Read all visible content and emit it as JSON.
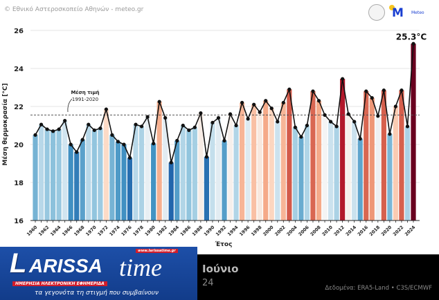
{
  "header": {
    "copyright": "© Εθνικό Αστεροσκοπείο Αθηνών - meteo.gr",
    "logo_text": "Meteo"
  },
  "footer": {
    "month": "Ιούνιο",
    "year_fragment": "24",
    "source": "Δεδομένα: ERA5-Land • C3S/ECMWF"
  },
  "banner": {
    "brand_l": "L",
    "brand_rest": "ARISSA",
    "brand_time": "time",
    "url": "www.larissatime.gr",
    "subtitle": "ΗΜΕΡΗΣΙΑ ΗΛΕΚΤΡΟΝΙΚΗ ΕΦΗΜΕΡΙΔΑ",
    "tagline": "τα γεγονότα τη στιγμή που συμβαίνουν"
  },
  "chart_data": {
    "type": "bar",
    "title": "",
    "xlabel": "Έτος",
    "ylabel": "Μέση θερμοκρασία [°C]",
    "ylim": [
      16,
      26
    ],
    "yticks": [
      16,
      18,
      20,
      22,
      24,
      26
    ],
    "mean_label": "Μέση τιμή",
    "mean_period": "1991-2020",
    "mean_value": 21.55,
    "last_label": "25.3°C",
    "x": [
      1960,
      1961,
      1962,
      1963,
      1964,
      1965,
      1966,
      1967,
      1968,
      1969,
      1970,
      1971,
      1972,
      1973,
      1974,
      1975,
      1976,
      1977,
      1978,
      1979,
      1980,
      1981,
      1982,
      1983,
      1984,
      1985,
      1986,
      1987,
      1988,
      1989,
      1990,
      1991,
      1992,
      1993,
      1994,
      1995,
      1996,
      1997,
      1998,
      1999,
      2000,
      2001,
      2002,
      2003,
      2004,
      2005,
      2006,
      2007,
      2008,
      2009,
      2010,
      2011,
      2012,
      2013,
      2014,
      2015,
      2016,
      2017,
      2018,
      2019,
      2020,
      2021,
      2022,
      2023,
      2024
    ],
    "values": [
      20.5,
      21.05,
      20.8,
      20.7,
      20.8,
      21.25,
      20.0,
      19.6,
      20.25,
      21.05,
      20.75,
      20.85,
      21.85,
      20.5,
      20.15,
      20.0,
      19.3,
      21.05,
      20.95,
      21.45,
      20.05,
      22.25,
      21.4,
      19.05,
      20.2,
      21.0,
      20.75,
      20.9,
      21.65,
      19.35,
      21.15,
      21.4,
      20.2,
      21.6,
      21.0,
      22.2,
      21.35,
      22.1,
      21.7,
      22.3,
      21.9,
      21.2,
      22.2,
      22.9,
      20.9,
      20.4,
      21.0,
      22.8,
      22.3,
      21.55,
      21.2,
      20.95,
      23.45,
      21.6,
      21.2,
      20.3,
      22.8,
      22.45,
      21.5,
      22.85,
      20.55,
      22.0,
      22.85,
      20.95,
      25.3
    ]
  }
}
